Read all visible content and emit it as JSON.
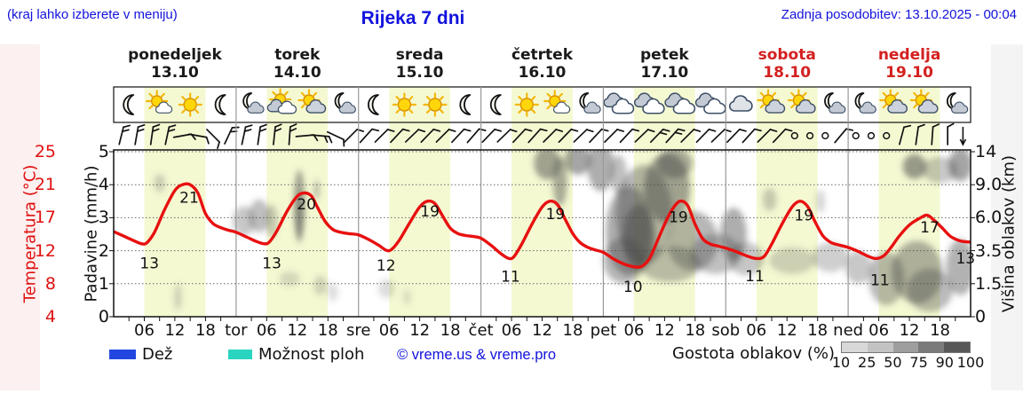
{
  "header": {
    "note": "(kraj lahko izberete v meniju)",
    "title": "Rijeka 7 dni",
    "updated": "Zadnja posodobitev: 13.10.2025 - 00:04"
  },
  "days": [
    {
      "name": "ponedeljek",
      "date": "13.10",
      "color": "#1a1a1a"
    },
    {
      "name": "torek",
      "date": "14.10",
      "color": "#1a1a1a"
    },
    {
      "name": "sreda",
      "date": "15.10",
      "color": "#1a1a1a"
    },
    {
      "name": "četrtek",
      "date": "16.10",
      "color": "#1a1a1a"
    },
    {
      "name": "petek",
      "date": "17.10",
      "color": "#1a1a1a"
    },
    {
      "name": "sobota",
      "date": "18.10",
      "color": "#d42020"
    },
    {
      "name": "nedelja",
      "date": "19.10",
      "color": "#d42020"
    }
  ],
  "axes": {
    "temp_label": "Temperatura (°C)",
    "temp_ticks": [
      "25",
      "21",
      "17",
      "12",
      "8",
      "4"
    ],
    "rain_label": "Padavine (mm/h)",
    "rain_ticks": [
      "5",
      "4",
      "3",
      "2",
      "1",
      "0"
    ],
    "cloud_label": "Višina oblakov (km)",
    "cloud_ticks": [
      "14",
      "9.0",
      "6.0",
      "3.5",
      "1.5",
      "0"
    ],
    "hour_labels": [
      "06",
      "12",
      "18"
    ],
    "day_abbrevs": [
      "tor",
      "sre",
      "čet",
      "pet",
      "sob",
      "ned"
    ]
  },
  "legend": {
    "rain": "Dež",
    "rain_color": "#2247e0",
    "showers": "Možnost ploh",
    "showers_color": "#2ad5c0",
    "copyright": "© vreme.us & vreme.pro",
    "cloud_density": "Gostota oblakov (%)",
    "density_ticks": [
      "10",
      "25",
      "50",
      "75",
      "90",
      "100"
    ],
    "density_colors": [
      "#d8d8d8",
      "#c3c3c3",
      "#9e9e9e",
      "#7b7b7b",
      "#575757"
    ]
  },
  "icons": [
    "moon",
    "sun-smallcloud",
    "sun",
    "moon",
    "moon-cloud",
    "sun-clouds",
    "sun-cloud",
    "moon-cloud",
    "moon",
    "sun",
    "sun",
    "moon",
    "moon",
    "sun",
    "sun-smallcloud",
    "moon-cloud",
    "clouds",
    "clouds",
    "clouds",
    "clouds",
    "cloud",
    "sun-cloud",
    "sun-cloud",
    "moon-cloud",
    "moon-cloud",
    "sun-cloud",
    "sun-cloud",
    "moon-cloud"
  ],
  "wind": [
    [
      "b",
      14,
      2
    ],
    [
      "b",
      10,
      2
    ],
    [
      "b",
      8,
      2
    ],
    [
      "b",
      12,
      2
    ],
    [
      "b",
      80,
      1
    ],
    [
      "b",
      100,
      1
    ],
    [
      "b",
      135,
      1
    ],
    [
      "b",
      25,
      2
    ],
    [
      "b",
      12,
      2
    ],
    [
      "b",
      8,
      2
    ],
    [
      "b",
      6,
      2
    ],
    [
      "b",
      4,
      2
    ],
    [
      "b",
      85,
      1
    ],
    [
      "b",
      95,
      2
    ],
    [
      "b",
      115,
      1
    ],
    [
      "b",
      45,
      1
    ],
    [
      "b",
      42,
      1
    ],
    [
      "b",
      45,
      1
    ],
    [
      "b",
      43,
      1
    ],
    [
      "b",
      46,
      1
    ],
    [
      "b",
      44,
      1
    ],
    [
      "b",
      45,
      1
    ],
    [
      "b",
      43,
      1
    ],
    [
      "b",
      41,
      1
    ],
    [
      "b",
      44,
      1
    ],
    [
      "b",
      46,
      1
    ],
    [
      "b",
      43,
      1
    ],
    [
      "b",
      42,
      1
    ],
    [
      "b",
      45,
      1
    ],
    [
      "b",
      44,
      1
    ],
    [
      "b",
      46,
      1
    ],
    [
      "b",
      43,
      1
    ],
    [
      "b",
      45,
      1
    ],
    [
      "b",
      43,
      1
    ],
    [
      "b",
      46,
      1
    ],
    [
      "b",
      44,
      2
    ],
    [
      "b",
      42,
      2
    ],
    [
      "b",
      45,
      1
    ],
    [
      "b",
      44,
      1
    ],
    [
      "b",
      46,
      1
    ],
    [
      "b",
      44,
      1
    ],
    [
      "b",
      42,
      1
    ],
    [
      "b",
      45,
      1
    ],
    [
      "b",
      43,
      1
    ],
    [
      "c",
      0,
      0
    ],
    [
      "c",
      0,
      0
    ],
    [
      "c",
      0,
      0
    ],
    [
      "b",
      40,
      1
    ],
    [
      "c",
      0,
      0
    ],
    [
      "c",
      0,
      0
    ],
    [
      "c",
      0,
      0
    ],
    [
      "b",
      15,
      1
    ],
    [
      "b",
      8,
      1
    ],
    [
      "b",
      4,
      1
    ],
    [
      "b",
      0,
      1
    ],
    [
      "a",
      0,
      0
    ]
  ],
  "chart_data": {
    "type": "line",
    "title": "Rijeka 7 dni",
    "x_axis": "hours over 7 days (0-168), labels 06/12/18 per day",
    "xlim_hours": [
      0,
      168
    ],
    "day_band_hours": [
      6,
      18
    ],
    "day_band_color": "#f5f9d2",
    "temp_color": "#e81010",
    "grid_levels": [
      0,
      1,
      2,
      3,
      4,
      5
    ],
    "temp_axis_anchors": [
      [
        4,
        0
      ],
      [
        8,
        1
      ],
      [
        12,
        2
      ],
      [
        17,
        3
      ],
      [
        21,
        4
      ],
      [
        25,
        5
      ]
    ],
    "daily_min_max": [
      [
        13,
        21
      ],
      [
        13,
        20
      ],
      [
        12,
        19
      ],
      [
        11,
        19
      ],
      [
        10,
        19
      ],
      [
        11,
        19
      ],
      [
        11,
        17
      ]
    ],
    "temperature_series": [
      [
        0,
        14.9
      ],
      [
        2,
        14.2
      ],
      [
        4,
        13.5
      ],
      [
        5.5,
        13.05
      ],
      [
        6.5,
        13.2
      ],
      [
        8,
        14.8
      ],
      [
        10,
        18
      ],
      [
        12,
        20.3
      ],
      [
        13.5,
        21
      ],
      [
        15,
        21
      ],
      [
        16.5,
        20
      ],
      [
        18,
        17.5
      ],
      [
        19.5,
        16.1
      ],
      [
        21,
        15.5
      ],
      [
        22.5,
        15.1
      ],
      [
        24,
        14.8
      ],
      [
        26,
        14.1
      ],
      [
        28,
        13.4
      ],
      [
        29.5,
        13.05
      ],
      [
        30.5,
        13.3
      ],
      [
        32,
        15
      ],
      [
        34,
        17.8
      ],
      [
        36,
        19.6
      ],
      [
        37.5,
        20
      ],
      [
        38.8,
        19.6
      ],
      [
        40,
        18.2
      ],
      [
        41.5,
        16.4
      ],
      [
        43,
        15.2
      ],
      [
        44.5,
        14.8
      ],
      [
        46,
        14.6
      ],
      [
        48,
        14.4
      ],
      [
        50,
        13.7
      ],
      [
        52,
        12.8
      ],
      [
        53.5,
        12.05
      ],
      [
        54.5,
        12.2
      ],
      [
        56,
        13.6
      ],
      [
        58,
        16.2
      ],
      [
        60,
        18.3
      ],
      [
        61.5,
        19
      ],
      [
        63,
        18.7
      ],
      [
        64.5,
        17.2
      ],
      [
        66,
        15.4
      ],
      [
        67.5,
        14.6
      ],
      [
        69,
        14.3
      ],
      [
        70.5,
        14.15
      ],
      [
        72,
        13.9
      ],
      [
        74,
        12.8
      ],
      [
        76,
        11.6
      ],
      [
        77.5,
        11.05
      ],
      [
        78.5,
        11.3
      ],
      [
        80,
        13
      ],
      [
        82,
        16
      ],
      [
        84,
        18.3
      ],
      [
        85.5,
        19
      ],
      [
        87,
        18.6
      ],
      [
        88.5,
        16.8
      ],
      [
        90,
        14.6
      ],
      [
        91.5,
        13.2
      ],
      [
        93,
        12.5
      ],
      [
        94.5,
        12.1
      ],
      [
        96,
        11.8
      ],
      [
        98,
        11
      ],
      [
        100,
        10.4
      ],
      [
        102,
        10.05
      ],
      [
        103.5,
        10.1
      ],
      [
        105,
        11
      ],
      [
        106.5,
        13.3
      ],
      [
        108,
        16
      ],
      [
        109.5,
        18
      ],
      [
        111,
        19
      ],
      [
        112.5,
        18.5
      ],
      [
        114,
        16
      ],
      [
        115.5,
        13.8
      ],
      [
        117,
        13
      ],
      [
        118.5,
        12.7
      ],
      [
        120,
        12.4
      ],
      [
        122,
        11.9
      ],
      [
        124,
        11.4
      ],
      [
        126,
        11.05
      ],
      [
        127.5,
        11.3
      ],
      [
        129,
        13
      ],
      [
        131,
        16
      ],
      [
        133,
        18.3
      ],
      [
        134.5,
        19
      ],
      [
        136,
        18.4
      ],
      [
        137.5,
        16.4
      ],
      [
        139,
        14.3
      ],
      [
        140.5,
        13.3
      ],
      [
        142,
        12.9
      ],
      [
        144,
        12.5
      ],
      [
        146,
        11.9
      ],
      [
        148,
        11.3
      ],
      [
        149.5,
        11.05
      ],
      [
        151,
        11.4
      ],
      [
        152.5,
        12.6
      ],
      [
        154,
        14.2
      ],
      [
        156,
        15.9
      ],
      [
        158,
        16.9
      ],
      [
        159.5,
        17.3
      ],
      [
        161,
        16.5
      ],
      [
        162.5,
        15.4
      ],
      [
        164,
        14.2
      ],
      [
        165.5,
        13.6
      ],
      [
        166.5,
        13.4
      ],
      [
        168,
        13.3
      ]
    ],
    "temp_point_labels": [
      [
        7,
        1.62,
        "13"
      ],
      [
        14.8,
        3.62,
        "21"
      ],
      [
        31,
        1.62,
        "13"
      ],
      [
        37.8,
        3.42,
        "20"
      ],
      [
        53.4,
        1.56,
        "12"
      ],
      [
        62,
        3.2,
        "19"
      ],
      [
        77.8,
        1.22,
        "11"
      ],
      [
        86.6,
        3.12,
        "19"
      ],
      [
        101.8,
        0.92,
        "10"
      ],
      [
        110.7,
        3.02,
        "19"
      ],
      [
        125.7,
        1.24,
        "11"
      ],
      [
        135.3,
        3.08,
        "19"
      ],
      [
        150.2,
        1.12,
        "11"
      ],
      [
        160,
        2.72,
        "17"
      ],
      [
        167,
        1.78,
        "13"
      ]
    ],
    "clouds": [
      [
        9,
        4.05,
        1.1,
        0.28,
        0.25
      ],
      [
        12.6,
        0.6,
        0.8,
        0.42,
        0.22
      ],
      [
        25.5,
        2.9,
        2.2,
        0.45,
        0.3
      ],
      [
        28.5,
        3.05,
        2.0,
        0.5,
        0.35
      ],
      [
        31,
        2.9,
        1.2,
        0.5,
        0.28
      ],
      [
        36.4,
        3.4,
        1.1,
        1.05,
        0.5
      ],
      [
        36.4,
        3.0,
        0.75,
        0.8,
        0.35
      ],
      [
        39.8,
        3.85,
        0.6,
        0.3,
        0.35
      ],
      [
        34.5,
        1.15,
        2.0,
        0.22,
        0.2
      ],
      [
        40.5,
        0.95,
        1.3,
        0.3,
        0.22
      ],
      [
        43,
        0.75,
        0.9,
        0.28,
        0.2
      ],
      [
        53.5,
        0.85,
        1.6,
        0.28,
        0.2
      ],
      [
        57.5,
        0.6,
        0.8,
        0.25,
        0.16
      ],
      [
        85,
        4.65,
        2.6,
        0.5,
        0.5
      ],
      [
        87.5,
        4.1,
        1.4,
        0.75,
        0.45
      ],
      [
        91,
        4.75,
        2.6,
        0.45,
        0.5
      ],
      [
        95.5,
        4.55,
        2.6,
        0.75,
        0.45
      ],
      [
        99,
        4.3,
        1.6,
        0.6,
        0.35
      ],
      [
        101,
        2.6,
        4.5,
        1.35,
        0.45
      ],
      [
        104,
        3.1,
        5.5,
        1.5,
        0.4
      ],
      [
        103,
        2.4,
        3.2,
        1.0,
        0.5
      ],
      [
        108.5,
        3.9,
        4.5,
        1.05,
        0.5
      ],
      [
        110,
        4.65,
        3.5,
        0.45,
        0.45
      ],
      [
        100,
        1.7,
        4,
        0.7,
        0.4
      ],
      [
        109,
        1.6,
        6,
        0.55,
        0.35
      ],
      [
        113.5,
        2.3,
        5,
        0.9,
        0.4
      ],
      [
        118,
        1.9,
        5,
        0.6,
        0.35
      ],
      [
        121.5,
        2.5,
        2.6,
        0.8,
        0.45
      ],
      [
        124,
        1.75,
        3.5,
        0.5,
        0.32
      ],
      [
        128.6,
        3.55,
        1.4,
        0.35,
        0.28
      ],
      [
        133,
        1.7,
        4.5,
        0.4,
        0.24
      ],
      [
        138.6,
        3.5,
        0.8,
        0.35,
        0.25
      ],
      [
        140.5,
        1.8,
        3.5,
        0.45,
        0.26
      ],
      [
        146,
        1.5,
        2.6,
        0.5,
        0.3
      ],
      [
        151.5,
        1.15,
        3.5,
        0.8,
        0.38
      ],
      [
        157.5,
        1.35,
        5,
        0.95,
        0.42
      ],
      [
        160,
        0.8,
        4.5,
        0.65,
        0.38
      ],
      [
        166,
        1.5,
        2.8,
        0.85,
        0.42
      ],
      [
        157,
        4.55,
        2.3,
        0.38,
        0.55
      ],
      [
        166,
        4.6,
        2.3,
        0.5,
        0.5
      ],
      [
        162,
        4.45,
        3.5,
        0.4,
        0.3
      ]
    ]
  }
}
